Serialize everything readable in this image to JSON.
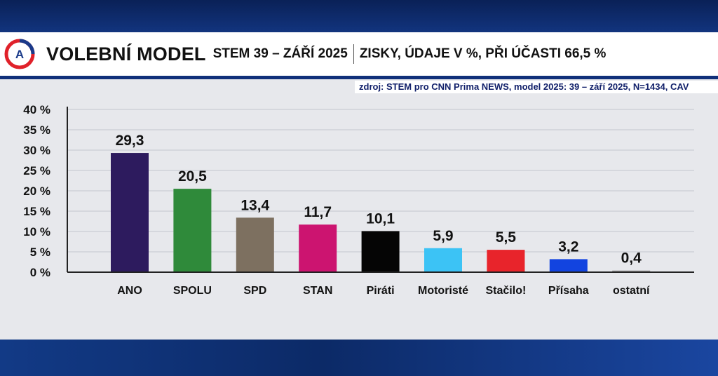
{
  "header": {
    "title": "VOLEBNÍ MODEL",
    "subtitle": "STEM 39 – ZÁŘÍ 2025",
    "info": "ZISKY, ÚDAJE V %, PŘI ÚČASTI 66,5 %",
    "logo_letter": "A"
  },
  "source": "zdroj: STEM pro CNN Prima NEWS, model 2025: 39 – září 2025, N=1434, CAV",
  "chart_data": {
    "type": "bar",
    "title": "VOLEBNÍ MODEL",
    "categories": [
      "ANO",
      "SPOLU",
      "SPD",
      "STAN",
      "Piráti",
      "Motoristé",
      "Stačilo!",
      "Přísaha",
      "ostatní"
    ],
    "values": [
      29.3,
      20.5,
      13.4,
      11.7,
      10.1,
      5.9,
      5.5,
      3.2,
      0.4
    ],
    "value_labels": [
      "29,3",
      "20,5",
      "13,4",
      "11,7",
      "10,1",
      "5,9",
      "5,5",
      "3,2",
      "0,4"
    ],
    "colors": [
      "#2d1b5e",
      "#2f8a3a",
      "#7d7060",
      "#cc1470",
      "#050505",
      "#3cc3f5",
      "#e8242b",
      "#1244e0",
      "#999999"
    ],
    "ylim": [
      0,
      40
    ],
    "yticks": [
      0,
      5,
      10,
      15,
      20,
      25,
      30,
      35,
      40
    ],
    "ytick_labels": [
      "0 %",
      "5 %",
      "10 %",
      "15 %",
      "20 %",
      "25 %",
      "30 %",
      "35 %",
      "40 %"
    ],
    "grid": true,
    "legend": "none"
  }
}
